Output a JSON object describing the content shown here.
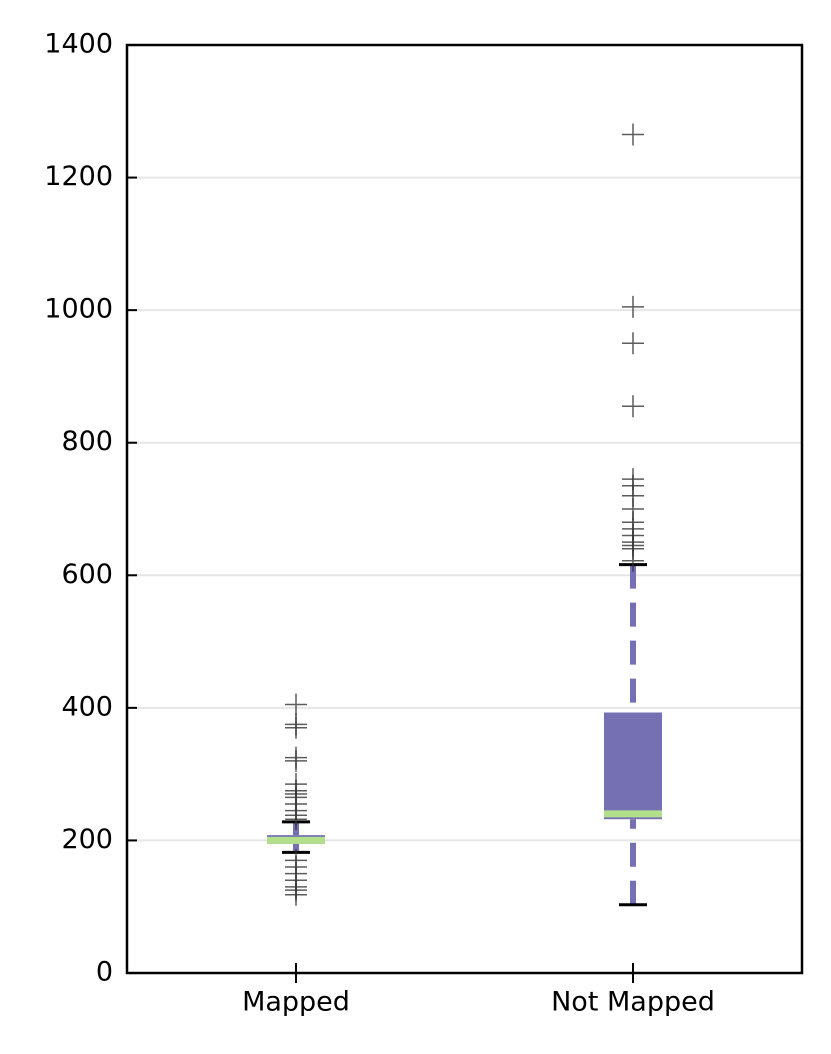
{
  "chart_data": {
    "type": "box",
    "categories": [
      "Mapped",
      "Not Mapped"
    ],
    "boxes": [
      {
        "whislo": 182,
        "q1": 195,
        "med": 200,
        "q3": 208,
        "whishi": 228,
        "fliers": [
          118,
          125,
          130,
          140,
          150,
          160,
          170,
          232,
          238,
          245,
          255,
          265,
          270,
          275,
          285,
          320,
          325,
          370,
          375,
          405
        ]
      },
      {
        "whislo": 103,
        "q1": 232,
        "med": 240,
        "q3": 393,
        "whishi": 616,
        "fliers": [
          622,
          640,
          645,
          650,
          660,
          670,
          680,
          700,
          720,
          735,
          745,
          855,
          950,
          1005,
          1265
        ]
      }
    ],
    "box_color": "#7570b3",
    "median_color": "#b2df8a",
    "flier_color": "#333333",
    "ylim": [
      0,
      1400
    ],
    "yticks": [
      0,
      200,
      400,
      600,
      800,
      1000,
      1200,
      1400
    ],
    "grid": true
  }
}
